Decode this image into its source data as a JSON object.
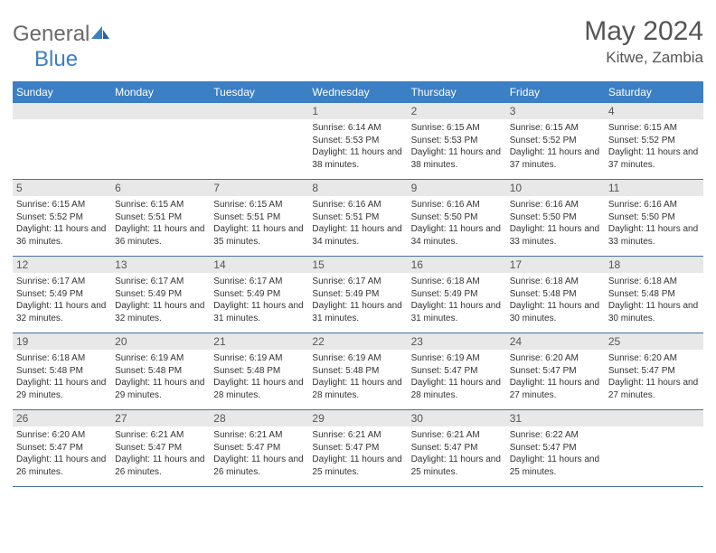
{
  "logo": {
    "text1": "General",
    "text2": "Blue"
  },
  "title": "May 2024",
  "location": "Kitwe, Zambia",
  "weekdays": [
    "Sunday",
    "Monday",
    "Tuesday",
    "Wednesday",
    "Thursday",
    "Friday",
    "Saturday"
  ],
  "header_bg": "#3b7fc4",
  "daynum_bg": "#e8e8e8",
  "border_color": "#4a6fa0",
  "weeks": [
    [
      {
        "day": "",
        "lines": []
      },
      {
        "day": "",
        "lines": []
      },
      {
        "day": "",
        "lines": []
      },
      {
        "day": "1",
        "lines": [
          "Sunrise: 6:14 AM",
          "Sunset: 5:53 PM",
          "Daylight: 11 hours and 38 minutes."
        ]
      },
      {
        "day": "2",
        "lines": [
          "Sunrise: 6:15 AM",
          "Sunset: 5:53 PM",
          "Daylight: 11 hours and 38 minutes."
        ]
      },
      {
        "day": "3",
        "lines": [
          "Sunrise: 6:15 AM",
          "Sunset: 5:52 PM",
          "Daylight: 11 hours and 37 minutes."
        ]
      },
      {
        "day": "4",
        "lines": [
          "Sunrise: 6:15 AM",
          "Sunset: 5:52 PM",
          "Daylight: 11 hours and 37 minutes."
        ]
      }
    ],
    [
      {
        "day": "5",
        "lines": [
          "Sunrise: 6:15 AM",
          "Sunset: 5:52 PM",
          "Daylight: 11 hours and 36 minutes."
        ]
      },
      {
        "day": "6",
        "lines": [
          "Sunrise: 6:15 AM",
          "Sunset: 5:51 PM",
          "Daylight: 11 hours and 36 minutes."
        ]
      },
      {
        "day": "7",
        "lines": [
          "Sunrise: 6:15 AM",
          "Sunset: 5:51 PM",
          "Daylight: 11 hours and 35 minutes."
        ]
      },
      {
        "day": "8",
        "lines": [
          "Sunrise: 6:16 AM",
          "Sunset: 5:51 PM",
          "Daylight: 11 hours and 34 minutes."
        ]
      },
      {
        "day": "9",
        "lines": [
          "Sunrise: 6:16 AM",
          "Sunset: 5:50 PM",
          "Daylight: 11 hours and 34 minutes."
        ]
      },
      {
        "day": "10",
        "lines": [
          "Sunrise: 6:16 AM",
          "Sunset: 5:50 PM",
          "Daylight: 11 hours and 33 minutes."
        ]
      },
      {
        "day": "11",
        "lines": [
          "Sunrise: 6:16 AM",
          "Sunset: 5:50 PM",
          "Daylight: 11 hours and 33 minutes."
        ]
      }
    ],
    [
      {
        "day": "12",
        "lines": [
          "Sunrise: 6:17 AM",
          "Sunset: 5:49 PM",
          "Daylight: 11 hours and 32 minutes."
        ]
      },
      {
        "day": "13",
        "lines": [
          "Sunrise: 6:17 AM",
          "Sunset: 5:49 PM",
          "Daylight: 11 hours and 32 minutes."
        ]
      },
      {
        "day": "14",
        "lines": [
          "Sunrise: 6:17 AM",
          "Sunset: 5:49 PM",
          "Daylight: 11 hours and 31 minutes."
        ]
      },
      {
        "day": "15",
        "lines": [
          "Sunrise: 6:17 AM",
          "Sunset: 5:49 PM",
          "Daylight: 11 hours and 31 minutes."
        ]
      },
      {
        "day": "16",
        "lines": [
          "Sunrise: 6:18 AM",
          "Sunset: 5:49 PM",
          "Daylight: 11 hours and 31 minutes."
        ]
      },
      {
        "day": "17",
        "lines": [
          "Sunrise: 6:18 AM",
          "Sunset: 5:48 PM",
          "Daylight: 11 hours and 30 minutes."
        ]
      },
      {
        "day": "18",
        "lines": [
          "Sunrise: 6:18 AM",
          "Sunset: 5:48 PM",
          "Daylight: 11 hours and 30 minutes."
        ]
      }
    ],
    [
      {
        "day": "19",
        "lines": [
          "Sunrise: 6:18 AM",
          "Sunset: 5:48 PM",
          "Daylight: 11 hours and 29 minutes."
        ]
      },
      {
        "day": "20",
        "lines": [
          "Sunrise: 6:19 AM",
          "Sunset: 5:48 PM",
          "Daylight: 11 hours and 29 minutes."
        ]
      },
      {
        "day": "21",
        "lines": [
          "Sunrise: 6:19 AM",
          "Sunset: 5:48 PM",
          "Daylight: 11 hours and 28 minutes."
        ]
      },
      {
        "day": "22",
        "lines": [
          "Sunrise: 6:19 AM",
          "Sunset: 5:48 PM",
          "Daylight: 11 hours and 28 minutes."
        ]
      },
      {
        "day": "23",
        "lines": [
          "Sunrise: 6:19 AM",
          "Sunset: 5:47 PM",
          "Daylight: 11 hours and 28 minutes."
        ]
      },
      {
        "day": "24",
        "lines": [
          "Sunrise: 6:20 AM",
          "Sunset: 5:47 PM",
          "Daylight: 11 hours and 27 minutes."
        ]
      },
      {
        "day": "25",
        "lines": [
          "Sunrise: 6:20 AM",
          "Sunset: 5:47 PM",
          "Daylight: 11 hours and 27 minutes."
        ]
      }
    ],
    [
      {
        "day": "26",
        "lines": [
          "Sunrise: 6:20 AM",
          "Sunset: 5:47 PM",
          "Daylight: 11 hours and 26 minutes."
        ]
      },
      {
        "day": "27",
        "lines": [
          "Sunrise: 6:21 AM",
          "Sunset: 5:47 PM",
          "Daylight: 11 hours and 26 minutes."
        ]
      },
      {
        "day": "28",
        "lines": [
          "Sunrise: 6:21 AM",
          "Sunset: 5:47 PM",
          "Daylight: 11 hours and 26 minutes."
        ]
      },
      {
        "day": "29",
        "lines": [
          "Sunrise: 6:21 AM",
          "Sunset: 5:47 PM",
          "Daylight: 11 hours and 25 minutes."
        ]
      },
      {
        "day": "30",
        "lines": [
          "Sunrise: 6:21 AM",
          "Sunset: 5:47 PM",
          "Daylight: 11 hours and 25 minutes."
        ]
      },
      {
        "day": "31",
        "lines": [
          "Sunrise: 6:22 AM",
          "Sunset: 5:47 PM",
          "Daylight: 11 hours and 25 minutes."
        ]
      },
      {
        "day": "",
        "lines": []
      }
    ]
  ]
}
